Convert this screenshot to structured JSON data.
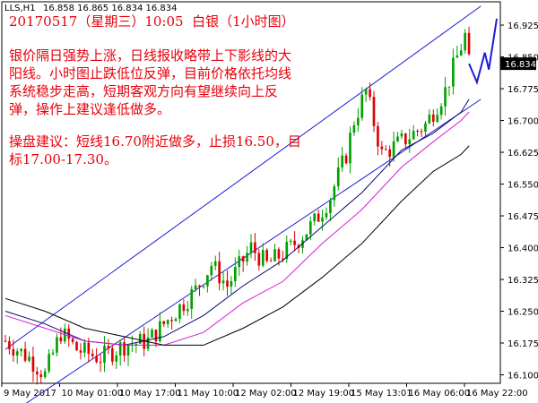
{
  "header": {
    "symbol_tf": "LLS,H1",
    "ohlc": "16.858 16.865 16.834 16.834"
  },
  "annotation": {
    "title": "20170517（星期三）10:05  白银（1小时图）",
    "analysis_lines": [
      "银价隔日强势上涨，日线报收略带上下影线的大",
      "阳线。小时图止跌低位反弹，目前价格依托均线",
      "系统稳步走高，短期客观方向有望继续向上反",
      "弹，操作上建议逢低做多。"
    ],
    "advice_lines": [
      "操盘建议：短线16.70附近做多，止损16.50，目",
      "标17.00-17.30。"
    ]
  },
  "colors": {
    "background": "#ffffff",
    "bull": "#00a000",
    "bear": "#e00000",
    "text_red": "#e8000b",
    "channel": "#1c1cd8",
    "ma_fast": "#0a0a6e",
    "ma_mid": "#d81ad8",
    "ma_slow": "#000000",
    "forecast": "#1c1cd8",
    "current_price_box": "#000000"
  },
  "chart_data": {
    "type": "candlestick",
    "symbol": "LLS",
    "timeframe": "H1",
    "ylim": [
      16.08,
      16.98
    ],
    "y_ticks": [
      "16.925",
      "16.850",
      "16.775",
      "16.700",
      "16.625",
      "16.550",
      "16.475",
      "16.400",
      "16.325",
      "16.250",
      "16.175",
      "16.100"
    ],
    "current_price": "16.834",
    "x_tick_labels": [
      "9 May 2017",
      "10 May 01:00",
      "10 May 17:00",
      "11 May 10:00",
      "12 May 02:00",
      "12 May 19:00",
      "15 May 13:01",
      "16 May 06:00",
      "16 May 22:00"
    ],
    "grid": false,
    "channel_lines": [
      {
        "from": [
          0,
          16.16
        ],
        "to": [
          120,
          16.97
        ]
      },
      {
        "from": [
          0,
          16.0
        ],
        "to": [
          120,
          16.75
        ]
      }
    ],
    "moving_averages": [
      {
        "key": "ma_fast",
        "values": [
          [
            0,
            16.25
          ],
          [
            10,
            16.22
          ],
          [
            20,
            16.18
          ],
          [
            30,
            16.17
          ],
          [
            40,
            16.19
          ],
          [
            50,
            16.24
          ],
          [
            60,
            16.31
          ],
          [
            70,
            16.37
          ],
          [
            80,
            16.45
          ],
          [
            90,
            16.53
          ],
          [
            100,
            16.63
          ],
          [
            108,
            16.67
          ],
          [
            115,
            16.72
          ],
          [
            117,
            16.75
          ]
        ]
      },
      {
        "key": "ma_mid",
        "values": [
          [
            0,
            16.24
          ],
          [
            10,
            16.21
          ],
          [
            20,
            16.18
          ],
          [
            30,
            16.17
          ],
          [
            40,
            16.17
          ],
          [
            50,
            16.2
          ],
          [
            60,
            16.27
          ],
          [
            70,
            16.32
          ],
          [
            80,
            16.41
          ],
          [
            90,
            16.49
          ],
          [
            100,
            16.59
          ],
          [
            108,
            16.65
          ],
          [
            115,
            16.7
          ],
          [
            117,
            16.72
          ]
        ]
      },
      {
        "key": "ma_slow",
        "values": [
          [
            0,
            16.28
          ],
          [
            10,
            16.25
          ],
          [
            20,
            16.21
          ],
          [
            30,
            16.19
          ],
          [
            40,
            16.17
          ],
          [
            50,
            16.17
          ],
          [
            60,
            16.21
          ],
          [
            70,
            16.26
          ],
          [
            80,
            16.33
          ],
          [
            90,
            16.41
          ],
          [
            100,
            16.51
          ],
          [
            108,
            16.58
          ],
          [
            115,
            16.62
          ],
          [
            117,
            16.64
          ]
        ]
      }
    ],
    "forecast_path": [
      [
        117,
        16.834
      ],
      [
        119,
        16.79
      ],
      [
        121,
        16.86
      ],
      [
        122,
        16.82
      ],
      [
        124,
        16.94
      ]
    ]
  }
}
